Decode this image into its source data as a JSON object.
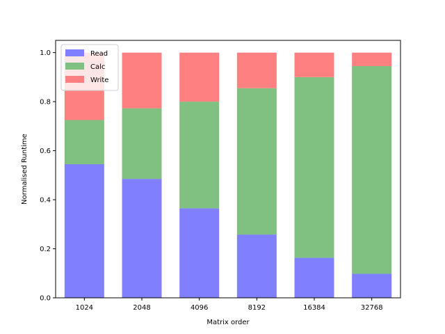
{
  "chart_data": {
    "type": "bar",
    "stacked": true,
    "title": "",
    "xlabel": "Matrix order",
    "ylabel": "Normalised Runtime",
    "categories": [
      "1024",
      "2048",
      "4096",
      "8192",
      "16384",
      "32768"
    ],
    "ylim": [
      0,
      1.05
    ],
    "yticks": [
      "0.0",
      "0.2",
      "0.4",
      "0.6",
      "0.8",
      "1.0"
    ],
    "grid": false,
    "legend_position": "top-left",
    "series": [
      {
        "name": "Read",
        "color": "#8080ff",
        "values": [
          0.545,
          0.485,
          0.365,
          0.258,
          0.163,
          0.098
        ]
      },
      {
        "name": "Calc",
        "color": "#80c080",
        "values": [
          0.18,
          0.288,
          0.435,
          0.597,
          0.737,
          0.847
        ]
      },
      {
        "name": "Write",
        "color": "#ff8080",
        "values": [
          0.275,
          0.227,
          0.2,
          0.145,
          0.1,
          0.055
        ]
      }
    ]
  }
}
